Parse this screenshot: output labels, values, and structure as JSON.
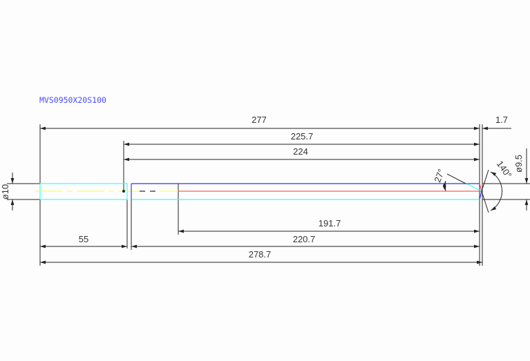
{
  "title": "MVS0950X20S100",
  "dimensions": {
    "overall_length": "277",
    "tip_offset": "1.7",
    "length_225": "225.7",
    "length_224": "224",
    "length_191": "191.7",
    "shank_length": "55",
    "length_220": "220.7",
    "total_length": "278.7",
    "shank_diameter": "ø10",
    "body_diameter": "ø9.5",
    "helix_angle": "27°",
    "point_angle": "140°"
  },
  "colors": {
    "shank": "#33ffff",
    "body": "#3333ff",
    "centerline": "#ffff33",
    "axis": "#ff3333",
    "dimension": "#222222",
    "title": "#4a4aff"
  }
}
